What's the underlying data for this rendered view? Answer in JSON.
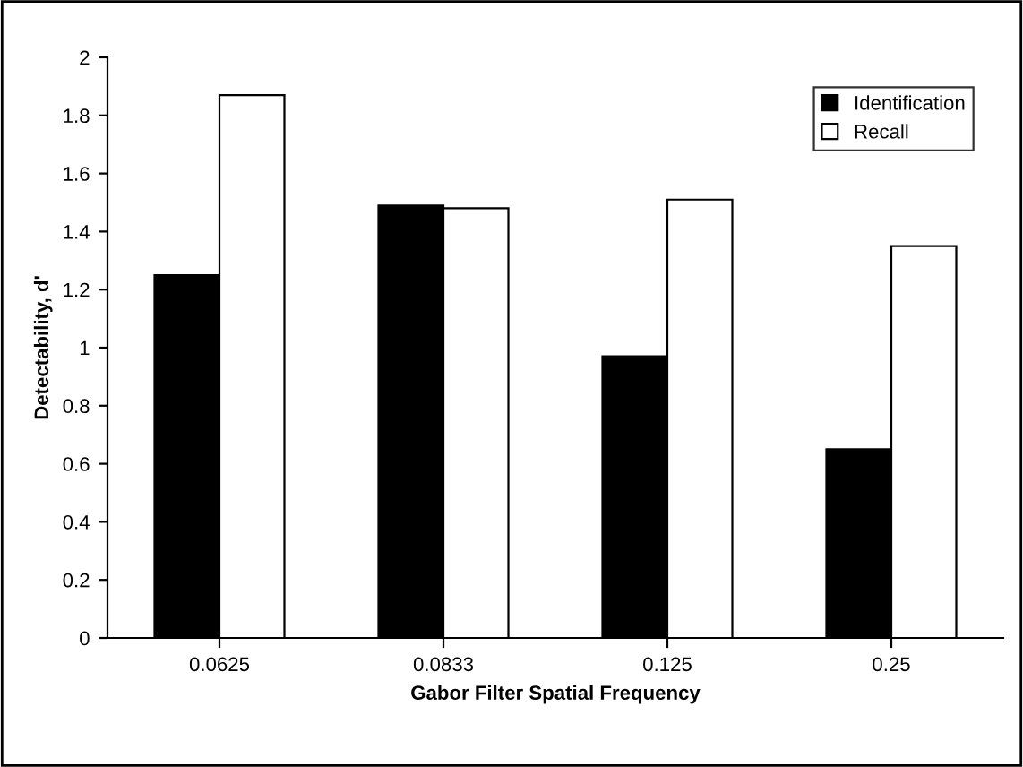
{
  "chart_data": {
    "type": "bar",
    "xlabel": "Gabor Filter Spatial Frequency",
    "ylabel": "Detectability, d'",
    "categories": [
      "0.0625",
      "0.0833",
      "0.125",
      "0.25"
    ],
    "series": [
      {
        "name": "Identification",
        "color": "#000000",
        "values": [
          1.25,
          1.49,
          0.97,
          0.65
        ]
      },
      {
        "name": "Recall",
        "color": "#ffffff",
        "values": [
          1.87,
          1.48,
          1.51,
          1.35
        ]
      }
    ],
    "ylim": [
      0,
      2
    ],
    "yticks": [
      0,
      0.2,
      0.4,
      0.6,
      0.8,
      1,
      1.2,
      1.4,
      1.6,
      1.8,
      2
    ],
    "grid": false,
    "legend": "top right"
  }
}
